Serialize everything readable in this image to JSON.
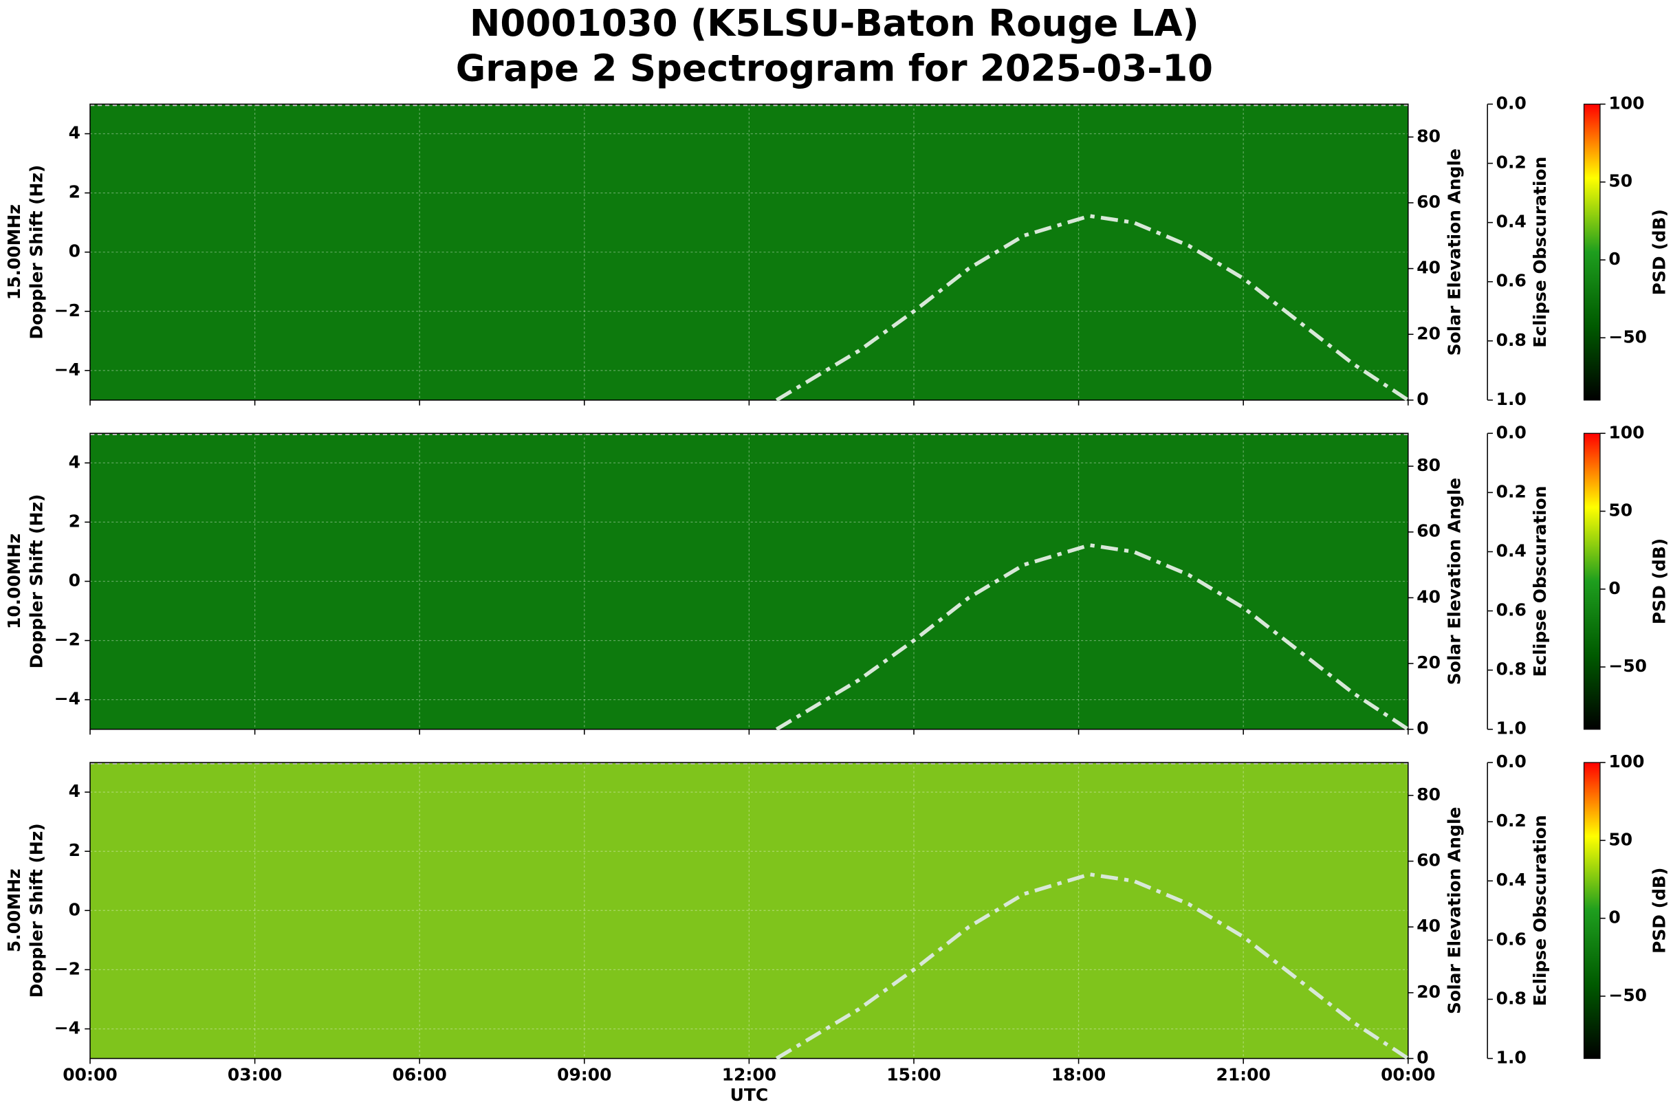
{
  "title": [
    "N0001030 (K5LSU-Baton Rouge LA)",
    "Grape 2 Spectrogram for 2025-03-10"
  ],
  "chart_data": [
    {
      "type": "spectrogram",
      "background": "#0d7a0d",
      "ylabel": [
        "15.00MHz",
        "Doppler Shift (Hz)"
      ],
      "ylim": [
        -5,
        5
      ],
      "yticks": [
        {
          "value": -4,
          "label": "−4"
        },
        {
          "value": -2,
          "label": "−2"
        },
        0,
        2,
        4
      ],
      "xlim": [
        0,
        24
      ],
      "xticks": [
        0,
        3,
        6,
        9,
        12,
        15,
        18,
        21,
        24
      ],
      "grid": true,
      "y2label": "Solar Elevation Angle",
      "y2lim": [
        0,
        90
      ],
      "y2ticks": [
        0,
        20,
        40,
        60,
        80
      ],
      "y3label": "Eclipse Obscuration",
      "y3lim": [
        1,
        0
      ],
      "y3ticks": [
        {
          "value": 0,
          "label": "0.0"
        },
        {
          "value": 0.2,
          "label": "0.2"
        },
        {
          "value": 0.4,
          "label": "0.4"
        },
        {
          "value": 0.6,
          "label": "0.6"
        },
        {
          "value": 0.8,
          "label": "0.8"
        },
        {
          "value": 1,
          "label": "1.0"
        }
      ],
      "colorbar": {
        "label": "PSD (dB)",
        "lim": [
          -90,
          100
        ],
        "ticks": [
          {
            "value": -50,
            "label": "−50"
          },
          0,
          50,
          100
        ],
        "colors": [
          "#000000",
          "#005a00",
          "#1e9e1e",
          "#ffff00",
          "#ff0000"
        ]
      },
      "x": [
        12.5,
        13,
        14,
        15,
        16,
        17,
        18,
        18.2,
        19,
        20,
        21,
        22,
        23,
        24
      ],
      "series": [
        {
          "axis": "y2",
          "color": "#d8e8d8",
          "values": [
            0,
            5,
            15,
            27,
            40,
            50,
            55,
            56,
            54,
            47,
            37,
            24,
            11,
            0
          ]
        }
      ]
    },
    {
      "type": "spectrogram",
      "background": "#0d7a0d",
      "ylabel": [
        "10.00MHz",
        "Doppler Shift (Hz)"
      ],
      "ylim": [
        -5,
        5
      ],
      "yticks": [
        {
          "value": -4,
          "label": "−4"
        },
        {
          "value": -2,
          "label": "−2"
        },
        0,
        2,
        4
      ],
      "xlim": [
        0,
        24
      ],
      "xticks": [
        0,
        3,
        6,
        9,
        12,
        15,
        18,
        21,
        24
      ],
      "grid": true,
      "y2label": "Solar Elevation Angle",
      "y2lim": [
        0,
        90
      ],
      "y2ticks": [
        0,
        20,
        40,
        60,
        80
      ],
      "y3label": "Eclipse Obscuration",
      "y3lim": [
        1,
        0
      ],
      "y3ticks": [
        {
          "value": 0,
          "label": "0.0"
        },
        {
          "value": 0.2,
          "label": "0.2"
        },
        {
          "value": 0.4,
          "label": "0.4"
        },
        {
          "value": 0.6,
          "label": "0.6"
        },
        {
          "value": 0.8,
          "label": "0.8"
        },
        {
          "value": 1,
          "label": "1.0"
        }
      ],
      "colorbar": {
        "label": "PSD (dB)",
        "lim": [
          -90,
          100
        ],
        "ticks": [
          {
            "value": -50,
            "label": "−50"
          },
          0,
          50,
          100
        ],
        "colors": [
          "#000000",
          "#005a00",
          "#1e9e1e",
          "#ffff00",
          "#ff0000"
        ]
      },
      "x": [
        12.5,
        13,
        14,
        15,
        16,
        17,
        18,
        18.2,
        19,
        20,
        21,
        22,
        23,
        24
      ],
      "series": [
        {
          "axis": "y2",
          "color": "#d8e8d8",
          "values": [
            0,
            5,
            15,
            27,
            40,
            50,
            55,
            56,
            54,
            47,
            37,
            24,
            11,
            0
          ]
        }
      ]
    },
    {
      "type": "spectrogram",
      "background": "#7fc41c",
      "ylabel": [
        "5.00MHz",
        "Doppler Shift (Hz)"
      ],
      "ylim": [
        -5,
        5
      ],
      "yticks": [
        {
          "value": -4,
          "label": "−4"
        },
        {
          "value": -2,
          "label": "−2"
        },
        0,
        2,
        4
      ],
      "xlim": [
        0,
        24
      ],
      "xticks": [
        {
          "value": 0,
          "label": "00:00"
        },
        {
          "value": 3,
          "label": "03:00"
        },
        {
          "value": 6,
          "label": "06:00"
        },
        {
          "value": 9,
          "label": "09:00"
        },
        {
          "value": 12,
          "label": "12:00"
        },
        {
          "value": 15,
          "label": "15:00"
        },
        {
          "value": 18,
          "label": "18:00"
        },
        {
          "value": 21,
          "label": "21:00"
        },
        {
          "value": 24,
          "label": "00:00"
        }
      ],
      "xlabel": "UTC",
      "grid": true,
      "y2label": "Solar Elevation Angle",
      "y2lim": [
        0,
        90
      ],
      "y2ticks": [
        0,
        20,
        40,
        60,
        80
      ],
      "y3label": "Eclipse Obscuration",
      "y3lim": [
        1,
        0
      ],
      "y3ticks": [
        {
          "value": 0,
          "label": "0.0"
        },
        {
          "value": 0.2,
          "label": "0.2"
        },
        {
          "value": 0.4,
          "label": "0.4"
        },
        {
          "value": 0.6,
          "label": "0.6"
        },
        {
          "value": 0.8,
          "label": "0.8"
        },
        {
          "value": 1,
          "label": "1.0"
        }
      ],
      "colorbar": {
        "label": "PSD (dB)",
        "lim": [
          -90,
          100
        ],
        "ticks": [
          {
            "value": -50,
            "label": "−50"
          },
          0,
          50,
          100
        ],
        "colors": [
          "#000000",
          "#005a00",
          "#1e9e1e",
          "#ffff00",
          "#ff0000"
        ]
      },
      "x": [
        12.5,
        13,
        14,
        15,
        16,
        17,
        18,
        18.2,
        19,
        20,
        21,
        22,
        23,
        24
      ],
      "series": [
        {
          "axis": "y2",
          "color": "#d8e8d8",
          "values": [
            0,
            5,
            15,
            27,
            40,
            50,
            55,
            56,
            54,
            47,
            37,
            24,
            11,
            0
          ]
        }
      ]
    }
  ]
}
